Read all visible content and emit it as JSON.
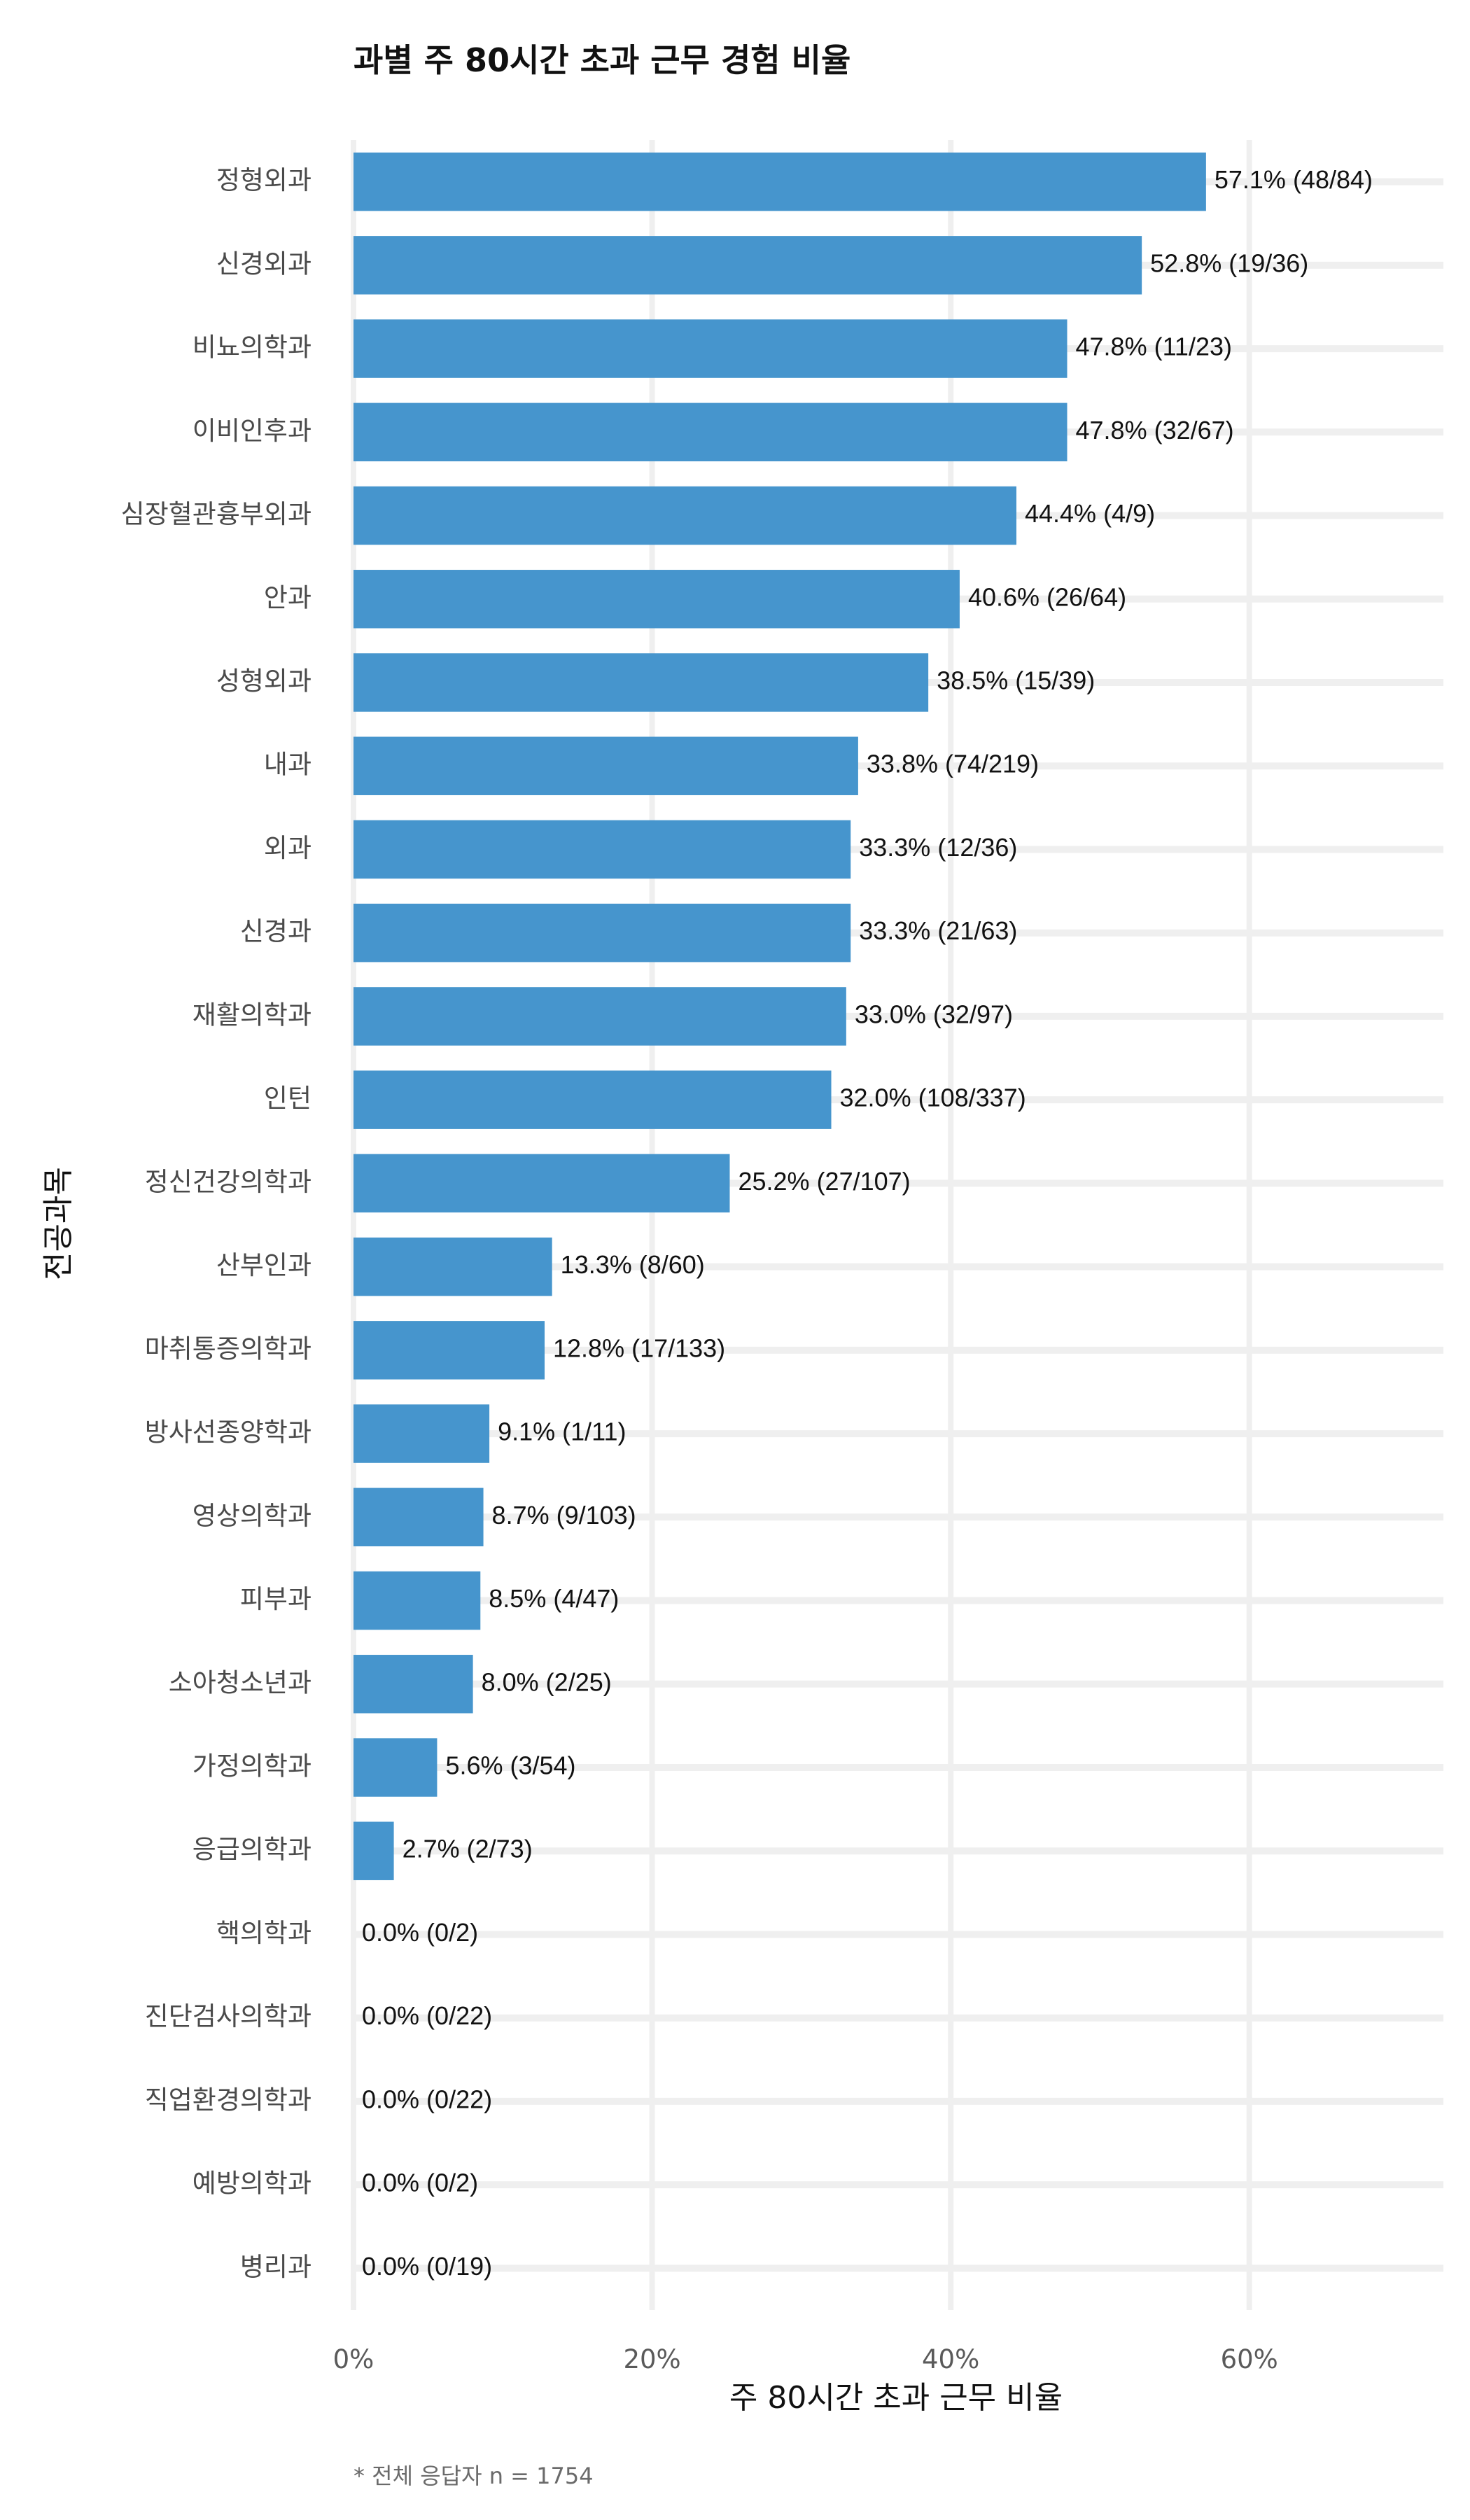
{
  "chart_data": {
    "type": "bar",
    "orientation": "horizontal",
    "title": "과별 주 80시간 초과 근무 경험 비율",
    "xlabel": "주 80시간 초과 근무 비율",
    "ylabel": "전공과목",
    "xlim": [
      0,
      73
    ],
    "xticks": [
      0,
      20,
      40,
      60
    ],
    "xtick_labels": [
      "0%",
      "20%",
      "40%",
      "60%"
    ],
    "grid": true,
    "bar_color": "#4695CD",
    "grid_color": "#EFEFEF",
    "footnote": "* 전체 응답자 n = 1754",
    "categories": [
      "정형외과",
      "신경외과",
      "비뇨의학과",
      "이비인후과",
      "심장혈관흉부외과",
      "안과",
      "성형외과",
      "내과",
      "외과",
      "신경과",
      "재활의학과",
      "인턴",
      "정신건강의학과",
      "산부인과",
      "마취통증의학과",
      "방사선종양학과",
      "영상의학과",
      "피부과",
      "소아청소년과",
      "가정의학과",
      "응급의학과",
      "핵의학과",
      "진단검사의학과",
      "직업환경의학과",
      "예방의학과",
      "병리과"
    ],
    "values": [
      57.1,
      52.8,
      47.8,
      47.8,
      44.4,
      40.6,
      38.5,
      33.8,
      33.3,
      33.3,
      33.0,
      32.0,
      25.2,
      13.3,
      12.8,
      9.1,
      8.7,
      8.5,
      8.0,
      5.6,
      2.7,
      0.0,
      0.0,
      0.0,
      0.0,
      0.0
    ],
    "data_labels": [
      "57.1% (48/84)",
      "52.8% (19/36)",
      "47.8% (11/23)",
      "47.8% (32/67)",
      "44.4% (4/9)",
      "40.6% (26/64)",
      "38.5% (15/39)",
      "33.8% (74/219)",
      "33.3% (12/36)",
      "33.3% (21/63)",
      "33.0% (32/97)",
      "32.0% (108/337)",
      "25.2% (27/107)",
      "13.3% (8/60)",
      "12.8% (17/133)",
      "9.1% (1/11)",
      "8.7% (9/103)",
      "8.5% (4/47)",
      "8.0% (2/25)",
      "5.6% (3/54)",
      "2.7% (2/73)",
      "0.0% (0/2)",
      "0.0% (0/22)",
      "0.0% (0/22)",
      "0.0% (0/2)",
      "0.0% (0/19)"
    ]
  }
}
